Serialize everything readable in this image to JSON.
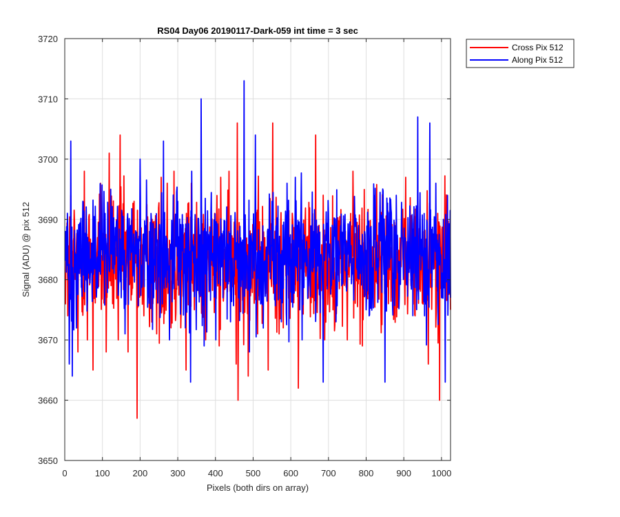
{
  "chart_data": {
    "type": "line",
    "title": "RS04 Day06 20190117-Dark-059 int time = 3 sec",
    "xlabel": "Pixels (both dirs on array)",
    "ylabel": "Signal (ADU) @ pix 512",
    "xlim": [
      0,
      1024
    ],
    "ylim": [
      3650,
      3720
    ],
    "xticks": [
      0,
      100,
      200,
      300,
      400,
      500,
      600,
      700,
      800,
      900,
      1000
    ],
    "yticks": [
      3650,
      3660,
      3670,
      3680,
      3690,
      3700,
      3710,
      3720
    ],
    "grid": true,
    "legend_position": "outside-top-right",
    "series": [
      {
        "name": "Cross Pix 512",
        "color": "#ff0000",
        "noise_base": 3683,
        "extremes": [
          {
            "x": 2,
            "y": 3676
          },
          {
            "x": 8,
            "y": 3674
          },
          {
            "x": 16,
            "y": 3694
          },
          {
            "x": 22,
            "y": 3672
          },
          {
            "x": 35,
            "y": 3668
          },
          {
            "x": 52,
            "y": 3698
          },
          {
            "x": 60,
            "y": 3670
          },
          {
            "x": 75,
            "y": 3665
          },
          {
            "x": 95,
            "y": 3696
          },
          {
            "x": 110,
            "y": 3668
          },
          {
            "x": 118,
            "y": 3701
          },
          {
            "x": 142,
            "y": 3670
          },
          {
            "x": 147,
            "y": 3704
          },
          {
            "x": 168,
            "y": 3668
          },
          {
            "x": 184,
            "y": 3693
          },
          {
            "x": 192,
            "y": 3657
          },
          {
            "x": 210,
            "y": 3674
          },
          {
            "x": 232,
            "y": 3690
          },
          {
            "x": 244,
            "y": 3671
          },
          {
            "x": 256,
            "y": 3697
          },
          {
            "x": 272,
            "y": 3696
          },
          {
            "x": 282,
            "y": 3672
          },
          {
            "x": 290,
            "y": 3698
          },
          {
            "x": 308,
            "y": 3672
          },
          {
            "x": 322,
            "y": 3665
          },
          {
            "x": 336,
            "y": 3696
          },
          {
            "x": 344,
            "y": 3675
          },
          {
            "x": 374,
            "y": 3670
          },
          {
            "x": 398,
            "y": 3691
          },
          {
            "x": 410,
            "y": 3669
          },
          {
            "x": 414,
            "y": 3697
          },
          {
            "x": 432,
            "y": 3678
          },
          {
            "x": 455,
            "y": 3666
          },
          {
            "x": 458,
            "y": 3706
          },
          {
            "x": 460,
            "y": 3660
          },
          {
            "x": 487,
            "y": 3664
          },
          {
            "x": 512,
            "y": 3671
          },
          {
            "x": 540,
            "y": 3665
          },
          {
            "x": 552,
            "y": 3706
          },
          {
            "x": 580,
            "y": 3672
          },
          {
            "x": 605,
            "y": 3690
          },
          {
            "x": 620,
            "y": 3662
          },
          {
            "x": 645,
            "y": 3686
          },
          {
            "x": 666,
            "y": 3704
          },
          {
            "x": 690,
            "y": 3670
          },
          {
            "x": 712,
            "y": 3675
          },
          {
            "x": 735,
            "y": 3686
          },
          {
            "x": 750,
            "y": 3670
          },
          {
            "x": 765,
            "y": 3698
          },
          {
            "x": 790,
            "y": 3669
          },
          {
            "x": 820,
            "y": 3690
          },
          {
            "x": 850,
            "y": 3680
          },
          {
            "x": 880,
            "y": 3688
          },
          {
            "x": 905,
            "y": 3697
          },
          {
            "x": 930,
            "y": 3674
          },
          {
            "x": 950,
            "y": 3688
          },
          {
            "x": 965,
            "y": 3666
          },
          {
            "x": 990,
            "y": 3691
          },
          {
            "x": 995,
            "y": 3660
          },
          {
            "x": 1010,
            "y": 3680
          },
          {
            "x": 1024,
            "y": 3675
          }
        ]
      },
      {
        "name": "Along Pix 512",
        "color": "#0000ff",
        "noise_base": 3684,
        "extremes": [
          {
            "x": 2,
            "y": 3688
          },
          {
            "x": 10,
            "y": 3680
          },
          {
            "x": 12,
            "y": 3666
          },
          {
            "x": 16,
            "y": 3703
          },
          {
            "x": 20,
            "y": 3664
          },
          {
            "x": 30,
            "y": 3680
          },
          {
            "x": 48,
            "y": 3693
          },
          {
            "x": 85,
            "y": 3679
          },
          {
            "x": 122,
            "y": 3695
          },
          {
            "x": 150,
            "y": 3677
          },
          {
            "x": 160,
            "y": 3671
          },
          {
            "x": 175,
            "y": 3689
          },
          {
            "x": 200,
            "y": 3700
          },
          {
            "x": 236,
            "y": 3677
          },
          {
            "x": 262,
            "y": 3703
          },
          {
            "x": 278,
            "y": 3670
          },
          {
            "x": 300,
            "y": 3693
          },
          {
            "x": 320,
            "y": 3672
          },
          {
            "x": 334,
            "y": 3663
          },
          {
            "x": 348,
            "y": 3680
          },
          {
            "x": 362,
            "y": 3710
          },
          {
            "x": 370,
            "y": 3669
          },
          {
            "x": 388,
            "y": 3691
          },
          {
            "x": 401,
            "y": 3670
          },
          {
            "x": 420,
            "y": 3677
          },
          {
            "x": 440,
            "y": 3673
          },
          {
            "x": 476,
            "y": 3713
          },
          {
            "x": 490,
            "y": 3668
          },
          {
            "x": 506,
            "y": 3704
          },
          {
            "x": 520,
            "y": 3676
          },
          {
            "x": 533,
            "y": 3683
          },
          {
            "x": 550,
            "y": 3693
          },
          {
            "x": 575,
            "y": 3673
          },
          {
            "x": 590,
            "y": 3696
          },
          {
            "x": 630,
            "y": 3670
          },
          {
            "x": 660,
            "y": 3682
          },
          {
            "x": 686,
            "y": 3663
          },
          {
            "x": 700,
            "y": 3691
          },
          {
            "x": 720,
            "y": 3673
          },
          {
            "x": 780,
            "y": 3689
          },
          {
            "x": 800,
            "y": 3675
          },
          {
            "x": 850,
            "y": 3663
          },
          {
            "x": 880,
            "y": 3694
          },
          {
            "x": 918,
            "y": 3682
          },
          {
            "x": 937,
            "y": 3707
          },
          {
            "x": 955,
            "y": 3674
          },
          {
            "x": 969,
            "y": 3706
          },
          {
            "x": 985,
            "y": 3696
          },
          {
            "x": 1000,
            "y": 3677
          },
          {
            "x": 1005,
            "y": 3690
          },
          {
            "x": 1010,
            "y": 3663
          },
          {
            "x": 1016,
            "y": 3694
          },
          {
            "x": 1024,
            "y": 3677
          }
        ]
      }
    ]
  }
}
